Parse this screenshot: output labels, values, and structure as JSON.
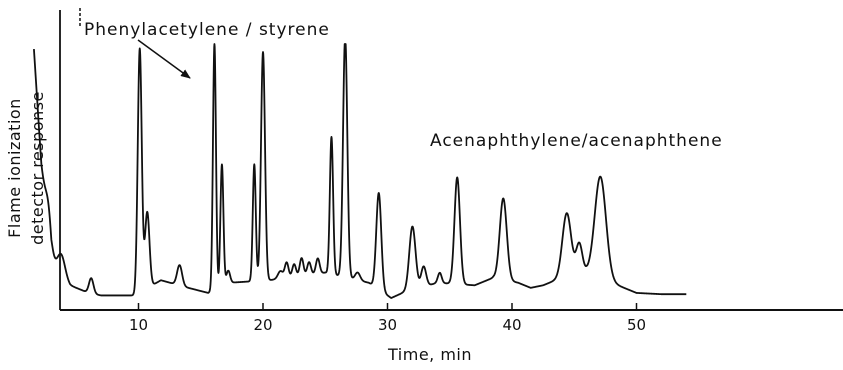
{
  "chart_data": {
    "type": "line",
    "title": "",
    "xlabel": "Time, min",
    "ylabel_lines": [
      "Flame ionization",
      "detector response"
    ],
    "xlim": [
      0,
      58
    ],
    "ylim": [
      0,
      1
    ],
    "x_ticks": [
      10,
      20,
      30,
      40,
      50
    ],
    "grid": false,
    "annotations": [
      {
        "text": "Phenylacetylene / styrene",
        "target_x": 10
      },
      {
        "text": "Acenaphthylene/acenaphthene",
        "target_x": 47
      }
    ],
    "series": [
      {
        "baseline": [
          [
            1.6,
            0.98
          ],
          [
            2.2,
            0.52
          ],
          [
            3.0,
            0.14
          ],
          [
            4.5,
            0.05
          ],
          [
            6.0,
            0.02
          ],
          [
            7.0,
            0.01
          ],
          [
            9.7,
            0.01
          ],
          [
            11.8,
            0.07
          ],
          [
            14.0,
            0.04
          ],
          [
            15.6,
            0.02
          ],
          [
            17.3,
            0.06
          ],
          [
            20.5,
            0.07
          ],
          [
            25.0,
            0.1
          ],
          [
            28.5,
            0.06
          ],
          [
            30.3,
            0.0
          ],
          [
            31.2,
            0.02
          ],
          [
            34.0,
            0.06
          ],
          [
            37.0,
            0.05
          ],
          [
            38.5,
            0.08
          ],
          [
            40.5,
            0.06
          ],
          [
            41.5,
            0.04
          ],
          [
            42.5,
            0.05
          ],
          [
            44.0,
            0.08
          ],
          [
            46.0,
            0.1
          ],
          [
            48.5,
            0.05
          ],
          [
            50.0,
            0.02
          ],
          [
            52.0,
            0.015
          ],
          [
            54.0,
            0.015
          ]
        ],
        "peaks": [
          {
            "rt": 2.8,
            "h": 0.12,
            "w": 0.25
          },
          {
            "rt": 3.8,
            "h": 0.08,
            "w": 0.3
          },
          {
            "rt": 6.2,
            "h": 0.06,
            "w": 0.18
          },
          {
            "rt": 10.1,
            "h": 0.96,
            "w": 0.16
          },
          {
            "rt": 10.7,
            "h": 0.3,
            "w": 0.18
          },
          {
            "rt": 13.3,
            "h": 0.08,
            "w": 0.2
          },
          {
            "rt": 16.1,
            "h": 0.97,
            "w": 0.12
          },
          {
            "rt": 16.7,
            "h": 0.48,
            "w": 0.12
          },
          {
            "rt": 17.2,
            "h": 0.05,
            "w": 0.15
          },
          {
            "rt": 19.3,
            "h": 0.46,
            "w": 0.12
          },
          {
            "rt": 20.0,
            "h": 0.9,
            "w": 0.16
          },
          {
            "rt": 21.4,
            "h": 0.03,
            "w": 0.2
          },
          {
            "rt": 21.9,
            "h": 0.06,
            "w": 0.15
          },
          {
            "rt": 22.5,
            "h": 0.05,
            "w": 0.15
          },
          {
            "rt": 23.1,
            "h": 0.07,
            "w": 0.15
          },
          {
            "rt": 23.7,
            "h": 0.05,
            "w": 0.15
          },
          {
            "rt": 24.4,
            "h": 0.06,
            "w": 0.15
          },
          {
            "rt": 25.5,
            "h": 0.54,
            "w": 0.13
          },
          {
            "rt": 26.6,
            "h": 0.95,
            "w": 0.17
          },
          {
            "rt": 27.6,
            "h": 0.03,
            "w": 0.2
          },
          {
            "rt": 29.3,
            "h": 0.38,
            "w": 0.2
          },
          {
            "rt": 32.0,
            "h": 0.25,
            "w": 0.25
          },
          {
            "rt": 32.9,
            "h": 0.08,
            "w": 0.2
          },
          {
            "rt": 34.2,
            "h": 0.04,
            "w": 0.15
          },
          {
            "rt": 35.6,
            "h": 0.42,
            "w": 0.22
          },
          {
            "rt": 39.3,
            "h": 0.32,
            "w": 0.28
          },
          {
            "rt": 44.4,
            "h": 0.25,
            "w": 0.35
          },
          {
            "rt": 45.4,
            "h": 0.12,
            "w": 0.25
          },
          {
            "rt": 47.1,
            "h": 0.4,
            "w": 0.45
          }
        ]
      }
    ]
  }
}
